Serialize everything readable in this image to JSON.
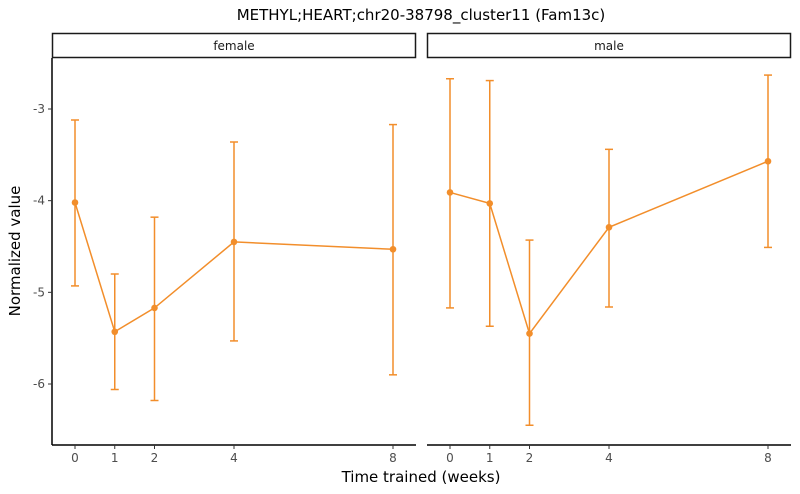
{
  "chart_data": {
    "type": "line",
    "title": "METHYL;HEART;chr20-38798_cluster11 (Fam13c)",
    "xlabel": "Time trained (weeks)",
    "ylabel": "Normalized value",
    "facets": [
      "female",
      "male"
    ],
    "x": [
      0,
      1,
      2,
      4,
      8
    ],
    "x_ticks": [
      "0",
      "1",
      "2",
      "4",
      "8"
    ],
    "y_ticks": [
      "-3",
      "-4",
      "-5",
      "-6"
    ],
    "y_tick_values": [
      -3,
      -4,
      -5,
      -6
    ],
    "ylim": [
      -6.65,
      -2.45
    ],
    "xlim": [
      -0.6,
      8.6
    ],
    "grid": false,
    "legend": "none",
    "color": "#F28E2B",
    "series": [
      {
        "name": "female",
        "values": [
          -4.02,
          -5.43,
          -5.17,
          -4.45,
          -4.53
        ],
        "error_upper": [
          -3.12,
          -4.8,
          -4.18,
          -3.36,
          -3.17
        ],
        "error_lower": [
          -4.93,
          -6.06,
          -6.18,
          -5.53,
          -5.9
        ]
      },
      {
        "name": "male",
        "values": [
          -3.91,
          -4.03,
          -5.45,
          -4.29,
          -3.57
        ],
        "error_upper": [
          -2.67,
          -2.69,
          -4.43,
          -3.44,
          -2.63
        ],
        "error_lower": [
          -5.17,
          -5.37,
          -6.45,
          -5.16,
          -4.51
        ]
      }
    ]
  }
}
